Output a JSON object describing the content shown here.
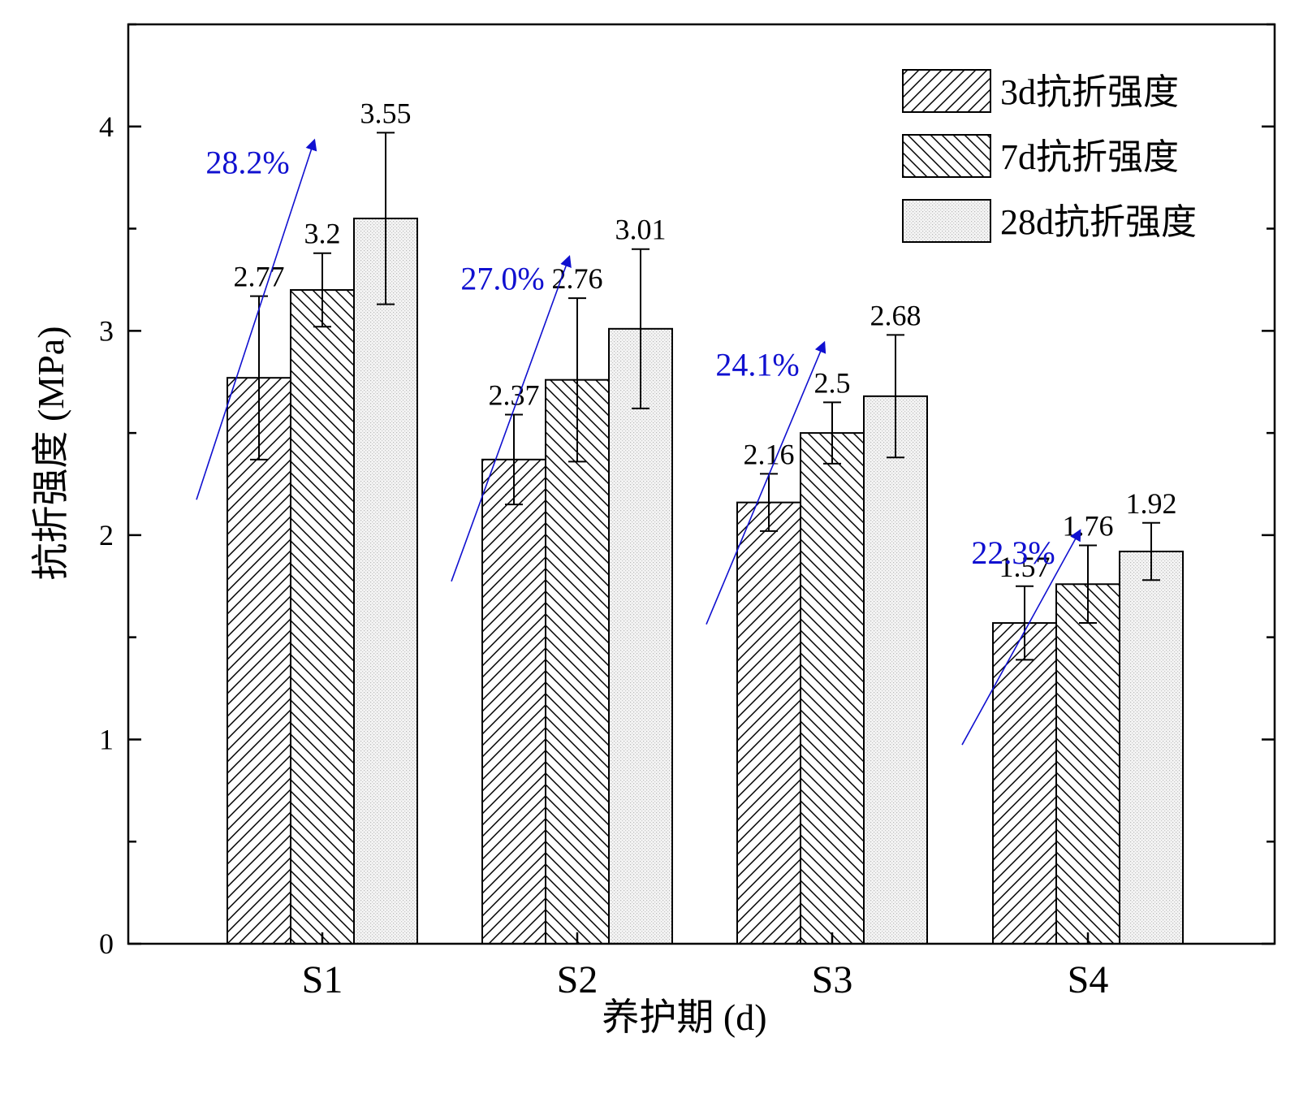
{
  "chart_data": {
    "type": "bar",
    "title": "",
    "xlabel": "养护期 (d)",
    "ylabel": "抗折强度 (MPa)",
    "ylim": [
      0,
      4.5
    ],
    "yticks": [
      0,
      1,
      2,
      3,
      4
    ],
    "grid": false,
    "legend_position": "top-right",
    "categories": [
      "S1",
      "S2",
      "S3",
      "S4"
    ],
    "series": [
      {
        "name": "3d抗折强度",
        "pattern": "hatch-forward",
        "values": [
          2.77,
          2.37,
          2.16,
          1.57
        ],
        "errors": [
          0.4,
          0.22,
          0.14,
          0.18
        ],
        "labels": [
          "2.77",
          "2.37",
          "2.16",
          "1.57"
        ]
      },
      {
        "name": "7d抗折强度",
        "pattern": "hatch-backward",
        "values": [
          3.2,
          2.76,
          2.5,
          1.76
        ],
        "errors": [
          0.18,
          0.4,
          0.15,
          0.19
        ],
        "labels": [
          "3.2",
          "2.76",
          "2.5",
          "1.76"
        ]
      },
      {
        "name": "28d抗折强度",
        "pattern": "dotted-fill",
        "values": [
          3.55,
          3.01,
          2.68,
          1.92
        ],
        "errors": [
          0.42,
          0.39,
          0.3,
          0.14
        ],
        "labels": [
          "3.55",
          "3.01",
          "2.68",
          "1.92"
        ]
      }
    ],
    "annotations": [
      {
        "category": "S1",
        "text": "28.2%",
        "color": "#1010d0"
      },
      {
        "category": "S2",
        "text": "27.0%",
        "color": "#1010d0"
      },
      {
        "category": "S3",
        "text": "24.1%",
        "color": "#1010d0"
      },
      {
        "category": "S4",
        "text": "22.3%",
        "color": "#1010d0"
      }
    ]
  }
}
